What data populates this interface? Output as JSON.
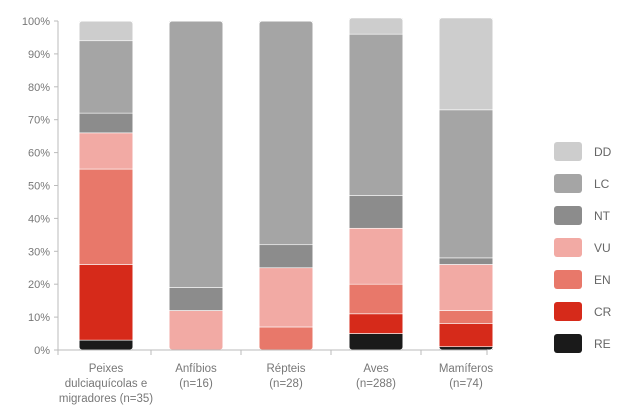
{
  "chart_data": {
    "type": "bar",
    "stacked": true,
    "percent": true,
    "title": "",
    "xlabel": "",
    "ylabel": "",
    "ylim": [
      0,
      100
    ],
    "y_ticks": [
      "0%",
      "10%",
      "20%",
      "30%",
      "40%",
      "50%",
      "60%",
      "70%",
      "80%",
      "90%",
      "100%"
    ],
    "grid": false,
    "legend_position": "right",
    "categories": [
      [
        "Peixes",
        "dulciaquícolas e",
        "migradores (n=35)"
      ],
      [
        "Anfíbios",
        "(n=16)"
      ],
      [
        "Répteis",
        "(n=28)"
      ],
      [
        "Aves",
        "(n=288)"
      ],
      [
        "Mamíferos",
        "(n=74)"
      ]
    ],
    "series": [
      {
        "name": "RE",
        "color": "#1a1a1a",
        "values": [
          3,
          0,
          0,
          5,
          1
        ]
      },
      {
        "name": "CR",
        "color": "#d62a1a",
        "values": [
          23,
          0,
          0,
          6,
          7
        ]
      },
      {
        "name": "EN",
        "color": "#e8786a",
        "values": [
          29,
          0,
          7,
          9,
          4
        ]
      },
      {
        "name": "VU",
        "color": "#f2aaa4",
        "values": [
          11,
          12,
          18,
          17,
          14
        ]
      },
      {
        "name": "NT",
        "color": "#8c8c8c",
        "values": [
          6,
          7,
          7,
          10,
          2
        ]
      },
      {
        "name": "LC",
        "color": "#a5a5a5",
        "values": [
          22,
          81,
          68,
          49,
          45
        ]
      },
      {
        "name": "DD",
        "color": "#cdcdcd",
        "values": [
          6,
          0,
          0,
          5,
          28
        ]
      }
    ]
  }
}
